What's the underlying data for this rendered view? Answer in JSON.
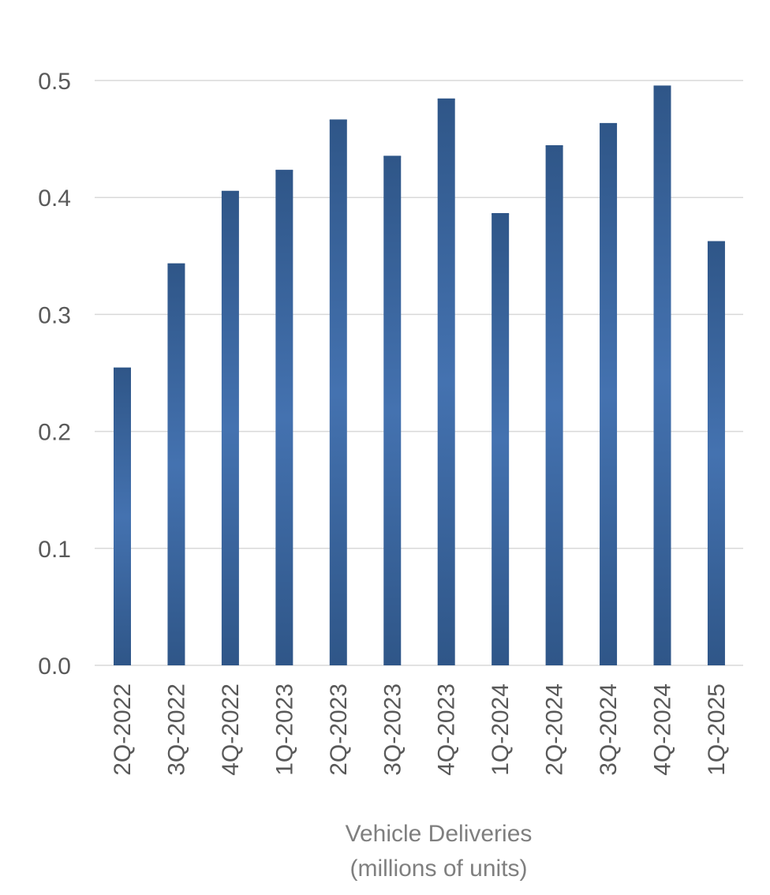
{
  "chart_data": {
    "type": "bar",
    "title": "",
    "categories": [
      "2Q-2022",
      "3Q-2022",
      "4Q-2022",
      "1Q-2023",
      "2Q-2023",
      "3Q-2023",
      "4Q-2023",
      "1Q-2024",
      "2Q-2024",
      "3Q-2024",
      "4Q-2024",
      "1Q-2025"
    ],
    "values": [
      0.254,
      0.343,
      0.405,
      0.423,
      0.466,
      0.435,
      0.484,
      0.386,
      0.444,
      0.463,
      0.495,
      0.362
    ],
    "xlabel": [
      "Vehicle Deliveries",
      "(millions of units)"
    ],
    "ylabel": "",
    "ylim": [
      0.0,
      0.5
    ],
    "yticks": [
      "0.0",
      "0.1",
      "0.2",
      "0.3",
      "0.4",
      "0.5"
    ],
    "grid": true,
    "legend": "none",
    "colors": {
      "bar_edge": "#2f5688",
      "bar_center": "#4472b0",
      "grid": "#d9d9d9",
      "tick_text": "#595959",
      "axis_title": "#7f7f7f"
    }
  }
}
